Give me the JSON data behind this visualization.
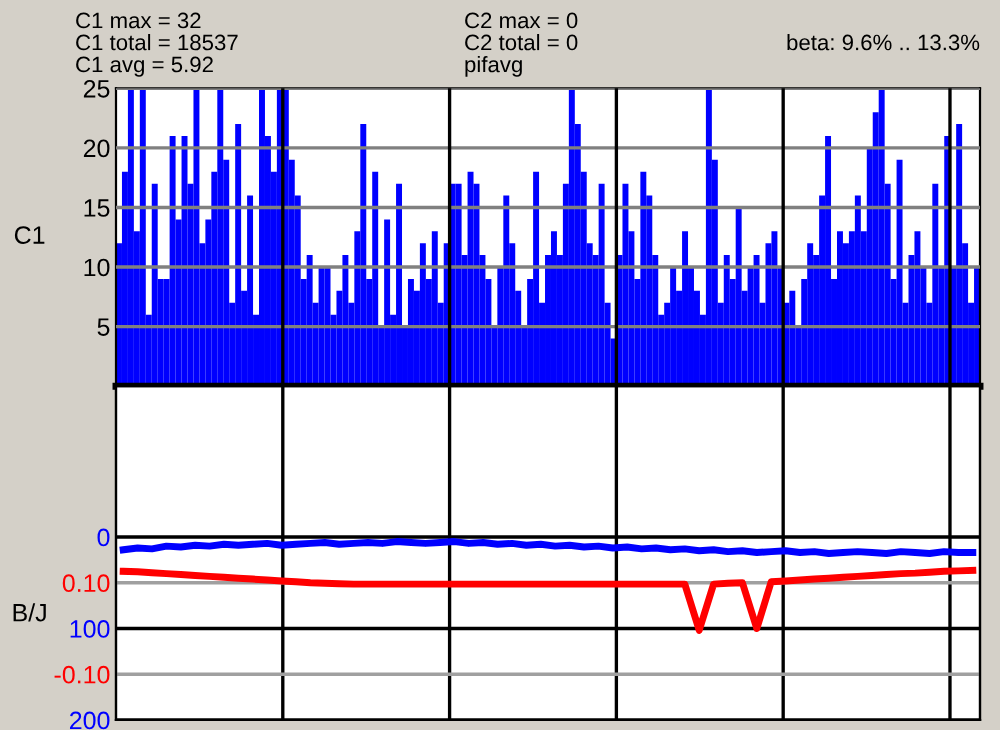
{
  "chart_data": [
    {
      "type": "bar",
      "ylabel": "C1",
      "color": "#0000ff",
      "ylim": [
        0,
        25
      ],
      "yticks": [
        5,
        10,
        15,
        20,
        25
      ],
      "grid": true,
      "tick_labels": "y",
      "annotations": [
        "C1 max = 32",
        "C1 total = 18537",
        "C1 avg = 5.92",
        "C2 max = 0",
        "C2 total = 0",
        "pifavg",
        "beta: 9.6% .. 13.3%"
      ],
      "categories": [
        null,
        null,
        null,
        null,
        null,
        null,
        null,
        null,
        null,
        null,
        null,
        null,
        null,
        null,
        null,
        null,
        null,
        null,
        null,
        null,
        null,
        null,
        null,
        null,
        null,
        null,
        null,
        null,
        null,
        null,
        null,
        null,
        null,
        null,
        null,
        null,
        null,
        null,
        null,
        null,
        null,
        null,
        null,
        null,
        null,
        null,
        null,
        null,
        null,
        null,
        null,
        null,
        null,
        null,
        null,
        null,
        null,
        null,
        null,
        null,
        null,
        null,
        null,
        null,
        null,
        null,
        null,
        null,
        null,
        null,
        null,
        null,
        null,
        null,
        null,
        null,
        null,
        null,
        null,
        null,
        null,
        null,
        null,
        null,
        null,
        null,
        null,
        null,
        null,
        null,
        null,
        null,
        null,
        null,
        null,
        null,
        null,
        null,
        null,
        null,
        null,
        null,
        null,
        null,
        null,
        null,
        null,
        null,
        null,
        null,
        null,
        null,
        null,
        null,
        null,
        null,
        null,
        null,
        null,
        null,
        null,
        null,
        null,
        null,
        null,
        null,
        null,
        null,
        null,
        null,
        null,
        null,
        null,
        null,
        null,
        null,
        null,
        null,
        null,
        null,
        null,
        null,
        null,
        null,
        null
      ],
      "values": [
        12,
        18,
        25,
        13,
        25,
        6,
        17,
        9,
        9,
        21,
        14,
        21,
        17,
        25,
        12,
        14,
        18,
        25,
        19,
        7,
        22,
        8,
        16,
        6,
        25,
        21,
        18,
        25,
        25,
        19,
        16,
        9,
        11,
        7,
        10,
        10,
        6,
        8,
        11,
        7,
        13,
        22,
        9,
        18,
        5,
        14,
        6,
        17,
        5,
        9,
        8,
        12,
        9,
        13,
        7,
        12,
        17,
        17,
        11,
        18,
        17,
        11,
        9,
        5,
        10,
        16,
        12,
        8,
        5,
        9,
        18,
        7,
        11,
        13,
        11,
        17,
        25,
        22,
        18,
        12,
        11,
        17,
        7,
        4,
        11,
        17,
        13,
        9,
        18,
        16,
        11,
        6,
        7,
        10,
        8,
        13,
        10,
        8,
        6,
        25,
        19,
        7,
        11,
        9,
        15,
        8,
        10,
        11,
        7,
        12,
        13,
        10,
        7,
        8,
        5,
        9,
        12,
        11,
        16,
        21,
        9,
        13,
        12,
        13,
        16,
        13,
        20,
        23,
        25,
        17,
        9,
        19,
        7,
        11,
        13,
        10,
        7,
        17,
        10,
        21,
        10,
        22,
        12,
        7,
        10
      ]
    },
    {
      "type": "line",
      "y2label": "B/J",
      "grid": true,
      "tick_labels": "y",
      "ylim": [
        200,
        -165
      ],
      "yticks": [
        0,
        100,
        200
      ],
      "y2lim": [
        -0.2,
        0.53
      ],
      "y2ticks": [
        {
          "value": 0.1,
          "label": "0.10"
        },
        {
          "value": -0.1,
          "label": "-0.10"
        }
      ],
      "categories": [
        null,
        null,
        null,
        null,
        null,
        null,
        null,
        null,
        null,
        null,
        null,
        null,
        null,
        null,
        null,
        null,
        null,
        null,
        null,
        null,
        null,
        null,
        null,
        null,
        null,
        null,
        null,
        null,
        null,
        null,
        null,
        null,
        null,
        null,
        null,
        null,
        null,
        null,
        null,
        null,
        null,
        null,
        null,
        null,
        null,
        null,
        null,
        null,
        null,
        null,
        null,
        null,
        null,
        null,
        null,
        null,
        null,
        null,
        null,
        null
      ],
      "series": [
        {
          "color": "#0000ff",
          "axis": "y",
          "values": [
            14,
            12,
            13,
            10,
            11,
            9,
            10,
            8,
            9,
            8,
            7,
            9,
            8,
            7,
            6,
            8,
            7,
            6,
            7,
            5,
            6,
            7,
            6,
            5,
            7,
            6,
            8,
            7,
            9,
            8,
            10,
            9,
            11,
            10,
            12,
            11,
            13,
            12,
            14,
            13,
            15,
            14,
            16,
            15,
            17,
            16,
            15,
            17,
            16,
            18,
            17,
            16,
            17,
            18,
            16,
            17,
            18,
            16,
            17,
            17
          ]
        },
        {
          "color": "#ff0000",
          "axis": "y2",
          "values": [
            0.125,
            0.124,
            0.122,
            0.12,
            0.118,
            0.116,
            0.114,
            0.112,
            0.11,
            0.108,
            0.106,
            0.104,
            0.102,
            0.1,
            0.099,
            0.098,
            0.097,
            0.097,
            0.097,
            0.097,
            0.097,
            0.097,
            0.097,
            0.097,
            0.097,
            0.097,
            0.097,
            0.097,
            0.097,
            0.097,
            0.097,
            0.097,
            0.097,
            0.097,
            0.097,
            0.097,
            0.097,
            0.097,
            0.097,
            0.097,
            -0.004,
            0.097,
            0.099,
            0.1,
            0.0,
            0.102,
            0.104,
            0.106,
            0.108,
            0.11,
            0.112,
            0.114,
            0.116,
            0.118,
            0.12,
            0.121,
            0.123,
            0.125,
            0.126,
            0.127
          ]
        }
      ]
    }
  ]
}
